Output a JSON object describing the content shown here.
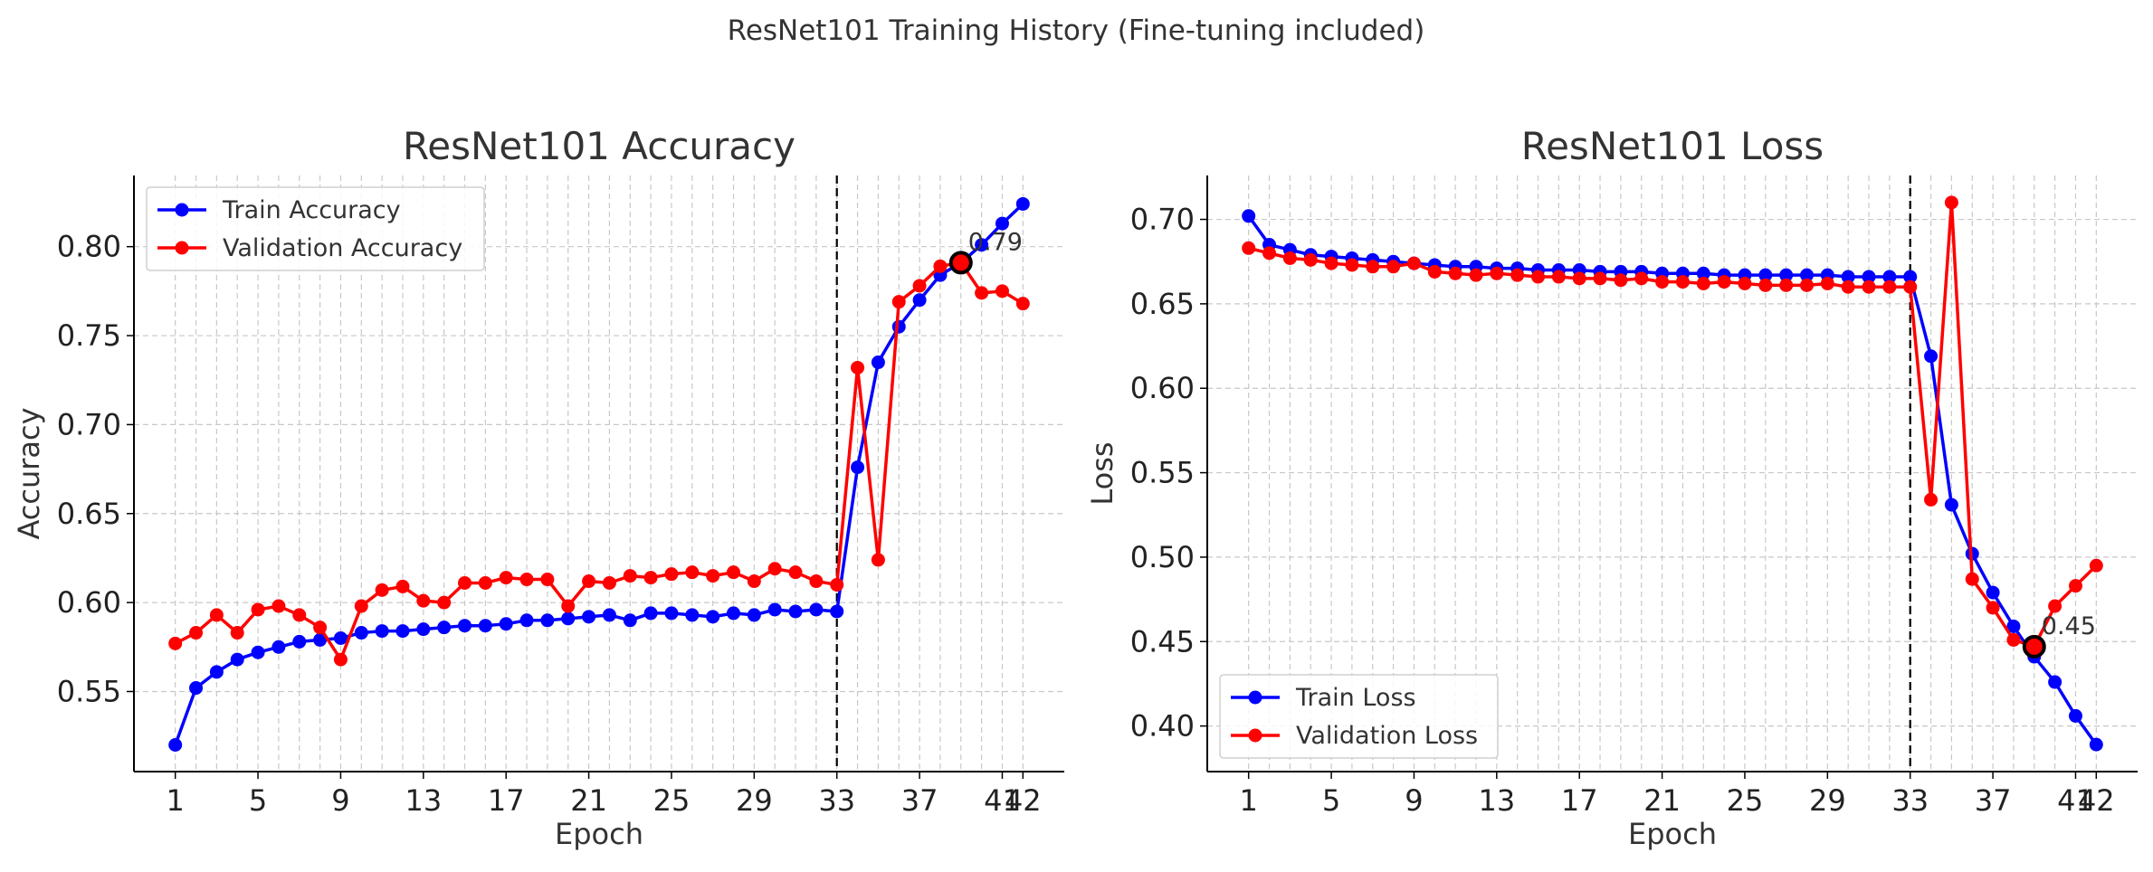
{
  "suptitle": "ResNet101 Training History (Fine-tuning included)",
  "chart_data": [
    {
      "type": "line",
      "title": "ResNet101 Accuracy",
      "xlabel": "Epoch",
      "ylabel": "Accuracy",
      "xlim": [
        -1,
        44
      ],
      "ylim": [
        0.505,
        0.84
      ],
      "xticks": [
        1,
        5,
        9,
        13,
        17,
        21,
        25,
        29,
        33,
        37,
        41,
        42
      ],
      "yticks": [
        0.55,
        0.6,
        0.65,
        0.7,
        0.75,
        0.8
      ],
      "ytick_labels": [
        "0.55",
        "0.60",
        "0.65",
        "0.70",
        "0.75",
        "0.80"
      ],
      "grid": true,
      "legend": "upper-left",
      "vline_epoch": 33,
      "highlight": {
        "x": 39,
        "y": 0.791,
        "label": "0.79"
      },
      "series": [
        {
          "name": "Train Accuracy",
          "color": "#0000ff",
          "x": [
            1,
            2,
            3,
            4,
            5,
            6,
            7,
            8,
            9,
            10,
            11,
            12,
            13,
            14,
            15,
            16,
            17,
            18,
            19,
            20,
            21,
            22,
            23,
            24,
            25,
            26,
            27,
            28,
            29,
            30,
            31,
            32,
            33,
            34,
            35,
            36,
            37,
            38,
            39,
            40,
            41,
            42
          ],
          "values": [
            0.52,
            0.552,
            0.561,
            0.568,
            0.572,
            0.575,
            0.578,
            0.579,
            0.58,
            0.583,
            0.584,
            0.584,
            0.585,
            0.586,
            0.587,
            0.587,
            0.588,
            0.59,
            0.59,
            0.591,
            0.592,
            0.593,
            0.59,
            0.594,
            0.594,
            0.593,
            0.592,
            0.594,
            0.593,
            0.596,
            0.595,
            0.596,
            0.595,
            0.676,
            0.735,
            0.755,
            0.77,
            0.784,
            0.791,
            0.801,
            0.813,
            0.824
          ]
        },
        {
          "name": "Validation Accuracy",
          "color": "#ff0000",
          "x": [
            1,
            2,
            3,
            4,
            5,
            6,
            7,
            8,
            9,
            10,
            11,
            12,
            13,
            14,
            15,
            16,
            17,
            18,
            19,
            20,
            21,
            22,
            23,
            24,
            25,
            26,
            27,
            28,
            29,
            30,
            31,
            32,
            33,
            34,
            35,
            36,
            37,
            38,
            39,
            40,
            41,
            42
          ],
          "values": [
            0.577,
            0.583,
            0.593,
            0.583,
            0.596,
            0.598,
            0.593,
            0.586,
            0.568,
            0.598,
            0.607,
            0.609,
            0.601,
            0.6,
            0.611,
            0.611,
            0.614,
            0.613,
            0.613,
            0.598,
            0.612,
            0.611,
            0.615,
            0.614,
            0.616,
            0.617,
            0.615,
            0.617,
            0.612,
            0.619,
            0.617,
            0.612,
            0.61,
            0.732,
            0.624,
            0.769,
            0.778,
            0.789,
            0.791,
            0.774,
            0.775,
            0.768
          ]
        }
      ]
    },
    {
      "type": "line",
      "title": "ResNet101 Loss",
      "xlabel": "Epoch",
      "ylabel": "Loss",
      "xlim": [
        -1,
        44
      ],
      "ylim": [
        0.373,
        0.726
      ],
      "xticks": [
        1,
        5,
        9,
        13,
        17,
        21,
        25,
        29,
        33,
        37,
        41,
        42
      ],
      "yticks": [
        0.4,
        0.45,
        0.5,
        0.55,
        0.6,
        0.65,
        0.7
      ],
      "ytick_labels": [
        "0.40",
        "0.45",
        "0.50",
        "0.55",
        "0.60",
        "0.65",
        "0.70"
      ],
      "grid": true,
      "legend": "lower-left",
      "vline_epoch": 33,
      "highlight": {
        "x": 39,
        "y": 0.447,
        "label": "0.45"
      },
      "series": [
        {
          "name": "Train Loss",
          "color": "#0000ff",
          "x": [
            1,
            2,
            3,
            4,
            5,
            6,
            7,
            8,
            9,
            10,
            11,
            12,
            13,
            14,
            15,
            16,
            17,
            18,
            19,
            20,
            21,
            22,
            23,
            24,
            25,
            26,
            27,
            28,
            29,
            30,
            31,
            32,
            33,
            34,
            35,
            36,
            37,
            38,
            39,
            40,
            41,
            42
          ],
          "values": [
            0.702,
            0.685,
            0.682,
            0.679,
            0.678,
            0.677,
            0.676,
            0.675,
            0.674,
            0.673,
            0.672,
            0.672,
            0.671,
            0.671,
            0.67,
            0.67,
            0.67,
            0.669,
            0.669,
            0.669,
            0.668,
            0.668,
            0.668,
            0.667,
            0.667,
            0.667,
            0.667,
            0.667,
            0.667,
            0.666,
            0.666,
            0.666,
            0.666,
            0.619,
            0.531,
            0.502,
            0.479,
            0.459,
            0.441,
            0.426,
            0.406,
            0.389
          ]
        },
        {
          "name": "Validation Loss",
          "color": "#ff0000",
          "x": [
            1,
            2,
            3,
            4,
            5,
            6,
            7,
            8,
            9,
            10,
            11,
            12,
            13,
            14,
            15,
            16,
            17,
            18,
            19,
            20,
            21,
            22,
            23,
            24,
            25,
            26,
            27,
            28,
            29,
            30,
            31,
            32,
            33,
            34,
            35,
            36,
            37,
            38,
            39,
            40,
            41,
            42
          ],
          "values": [
            0.683,
            0.68,
            0.677,
            0.676,
            0.674,
            0.673,
            0.672,
            0.672,
            0.674,
            0.669,
            0.668,
            0.667,
            0.668,
            0.667,
            0.666,
            0.666,
            0.665,
            0.665,
            0.664,
            0.665,
            0.663,
            0.663,
            0.662,
            0.663,
            0.662,
            0.661,
            0.661,
            0.661,
            0.662,
            0.66,
            0.66,
            0.66,
            0.66,
            0.534,
            0.71,
            0.487,
            0.47,
            0.451,
            0.447,
            0.471,
            0.483,
            0.495
          ]
        }
      ]
    }
  ]
}
